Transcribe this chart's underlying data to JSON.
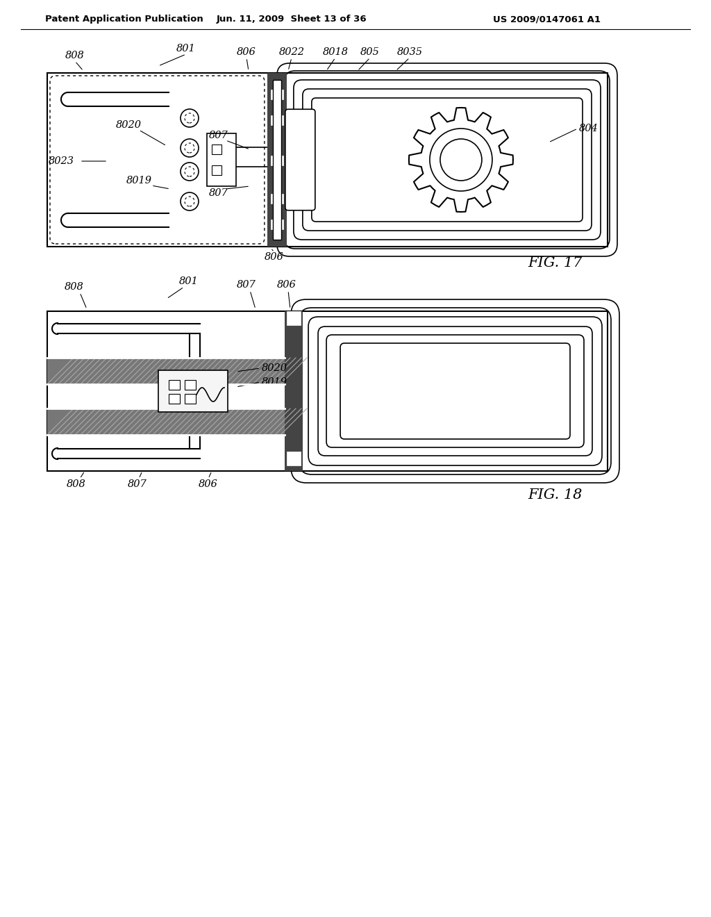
{
  "header_left": "Patent Application Publication",
  "header_mid": "Jun. 11, 2009  Sheet 13 of 36",
  "header_right": "US 2009/0147061 A1",
  "fig17_label": "FIG. 17",
  "fig18_label": "FIG. 18",
  "bg_color": "#ffffff",
  "line_color": "#000000",
  "dark_fill": "#444444",
  "gray_fill": "#888888",
  "light_gray": "#cccccc"
}
